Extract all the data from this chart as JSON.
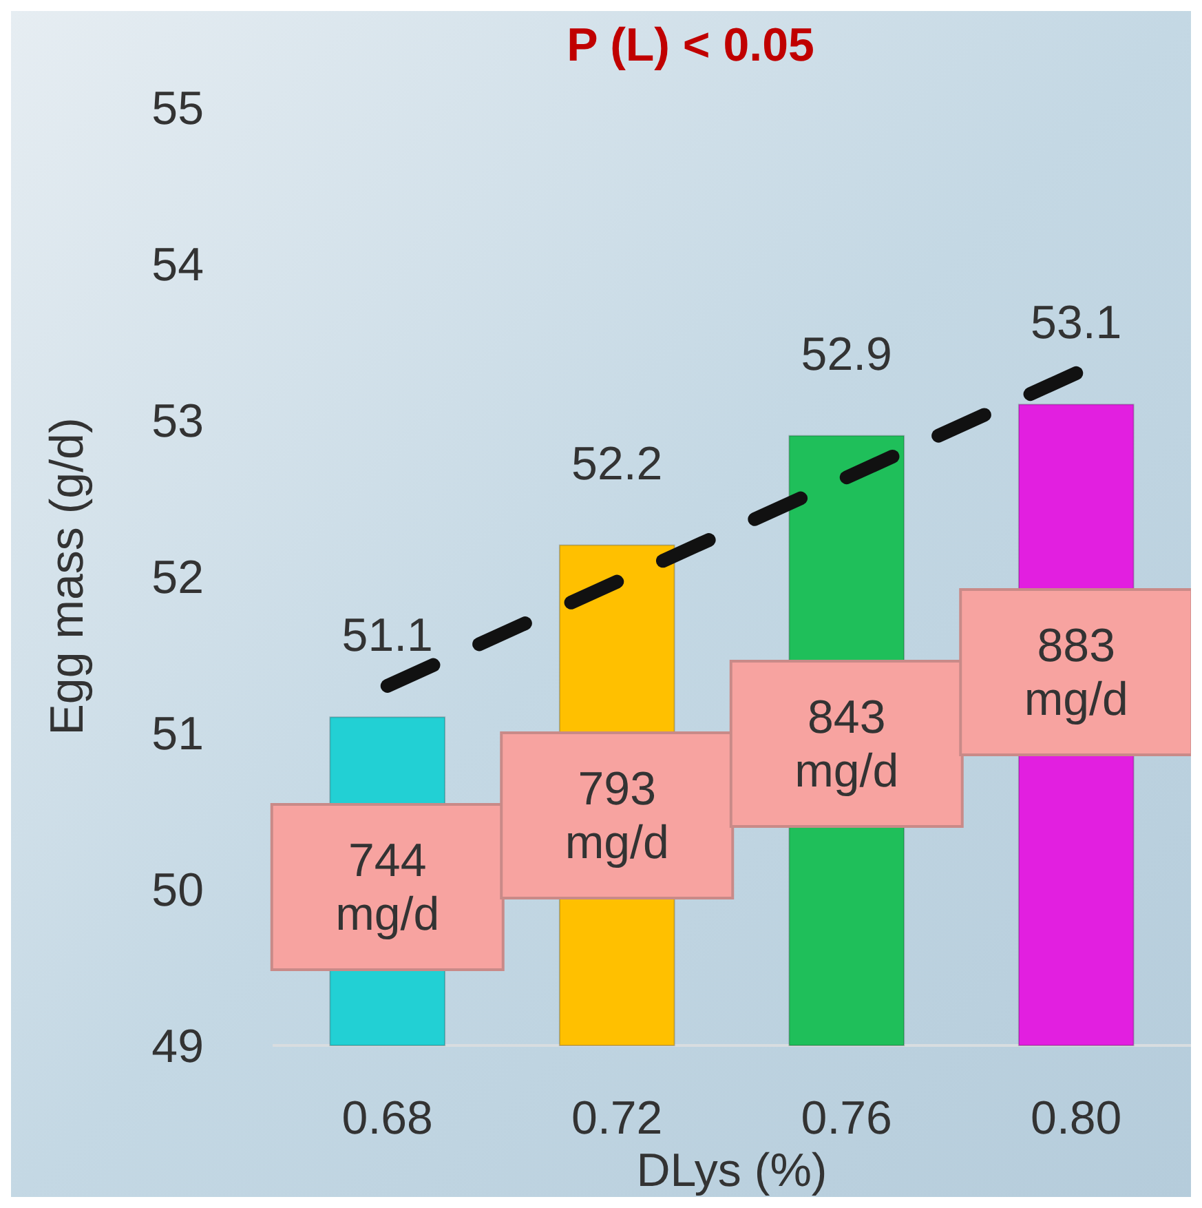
{
  "chart_data": {
    "type": "bar",
    "title": "P (L) < 0.05",
    "xlabel": "DLys (%)",
    "ylabel": "Egg mass (g/d)",
    "categories": [
      "0.68",
      "0.72",
      "0.76",
      "0.80"
    ],
    "series": [
      {
        "colors": [
          "#22d0d4",
          "#ffc000",
          "#1fbf5a",
          "#e21fe0"
        ],
        "values": [
          51.1,
          52.2,
          52.9,
          53.1
        ],
        "value_labels": [
          "51.1",
          "52.2",
          "52.9",
          "53.1"
        ]
      },
      {
        "type": "line",
        "x": [
          "0.68",
          "0.80"
        ],
        "values": [
          51.3,
          53.3
        ],
        "color": "#111111",
        "line_style": "dashed"
      }
    ],
    "ylim": [
      49,
      55
    ],
    "yticks": [
      49,
      50,
      51,
      52,
      53,
      54,
      55
    ],
    "annotations": [
      "744 mg/d",
      "793 mg/d",
      "843 mg/d",
      "883 mg/d"
    ]
  }
}
